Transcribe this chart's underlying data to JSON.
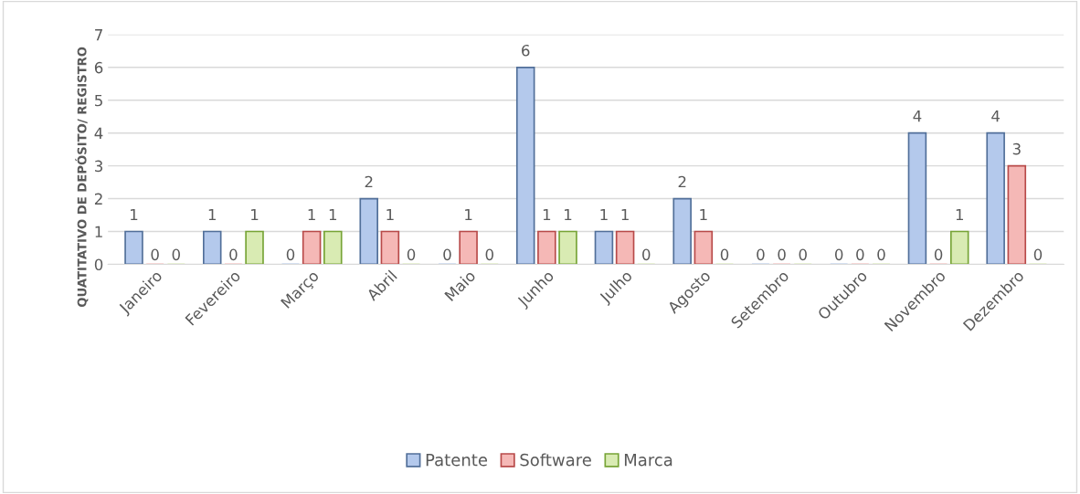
{
  "chart_data": {
    "type": "bar",
    "ylabel": "QUATITATIVO DE DEPÓSITO/ REGISTRO",
    "categories": [
      "Janeiro",
      "Fevereiro",
      "Março",
      "Abril",
      "Maio",
      "Junho",
      "Julho",
      "Agosto",
      "Setembro",
      "Outubro",
      "Novembro",
      "Dezembro"
    ],
    "series": [
      {
        "name": "Patente",
        "color": "#b4c9ec",
        "values": [
          1,
          1,
          0,
          2,
          0,
          6,
          1,
          2,
          0,
          0,
          4,
          4
        ]
      },
      {
        "name": "Software",
        "color": "#f5b8b6",
        "values": [
          0,
          0,
          1,
          1,
          1,
          1,
          1,
          1,
          0,
          0,
          0,
          3
        ]
      },
      {
        "name": "Marca",
        "color": "#d9ebb3",
        "values": [
          0,
          1,
          1,
          0,
          0,
          1,
          0,
          0,
          0,
          0,
          1,
          0
        ]
      }
    ],
    "ylim": [
      0,
      7
    ],
    "yticks": [
      0,
      1,
      2,
      3,
      4,
      5,
      6,
      7
    ],
    "grid": "y",
    "legend": "bottom",
    "data_labels": true
  }
}
